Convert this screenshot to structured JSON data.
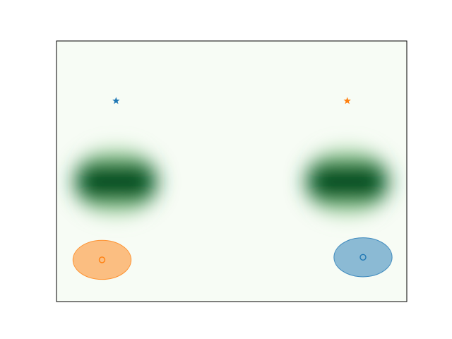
{
  "chart_data": {
    "type": "heatmap",
    "title": "",
    "xlabel": "",
    "ylabel": "",
    "colormap": "Greens",
    "axes_ticks": "none",
    "grid": false,
    "xlim": [
      0,
      1
    ],
    "ylim": [
      0,
      1
    ],
    "density_blobs": [
      {
        "x_range": [
          0.04,
          0.3
        ],
        "y": 0.46
      },
      {
        "x_range": [
          0.7,
          0.96
        ],
        "y": 0.46
      }
    ],
    "markers": [
      {
        "shape": "star",
        "x": 0.17,
        "y": 0.77,
        "color": "#1f77b4"
      },
      {
        "shape": "star",
        "x": 0.83,
        "y": 0.77,
        "color": "#ff7f0e"
      },
      {
        "shape": "circle",
        "x": 0.13,
        "y": 0.16,
        "color": "#ff7f0e"
      },
      {
        "shape": "circle",
        "x": 0.875,
        "y": 0.17,
        "color": "#1f77b4"
      }
    ],
    "ellipses": [
      {
        "cx": 0.13,
        "cy": 0.16,
        "rx": 0.083,
        "ry": 0.075,
        "color": "#ff7f0e",
        "alpha": 0.5
      },
      {
        "cx": 0.875,
        "cy": 0.17,
        "rx": 0.083,
        "ry": 0.075,
        "color": "#1f77b4",
        "alpha": 0.5
      }
    ]
  },
  "colors": {
    "background": "#f7fcf5",
    "dark": "#00441b",
    "mid": "#238b45",
    "light": "#a1d99b"
  }
}
